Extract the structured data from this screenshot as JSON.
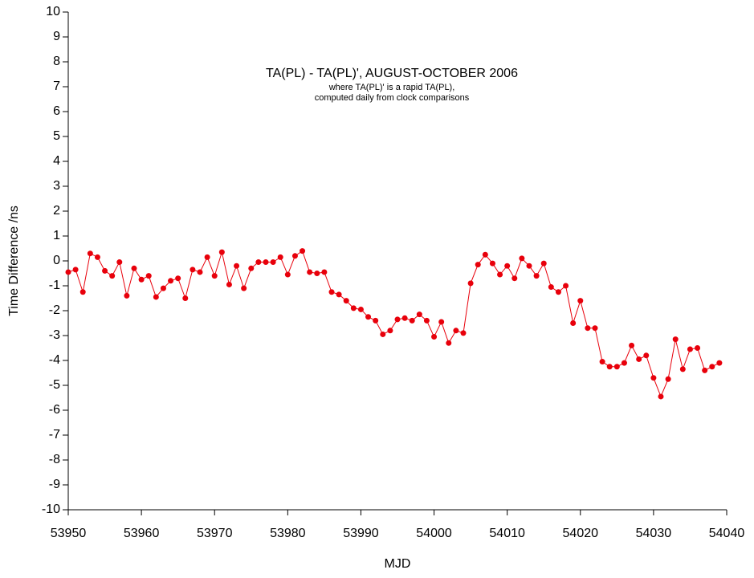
{
  "chart_data": {
    "type": "line",
    "title": "TA(PL) - TA(PL)', AUGUST-OCTOBER 2006",
    "subtitle": [
      "where TA(PL)' is a rapid TA(PL),",
      "computed daily from clock comparisons"
    ],
    "x_label": "MJD",
    "y_label": "Time Difference /ns",
    "xlim": [
      53950,
      54040
    ],
    "xticks": [
      53950,
      53960,
      53970,
      53980,
      53990,
      54000,
      54010,
      54020,
      54030,
      54040
    ],
    "ylim": [
      -10,
      10
    ],
    "yticks": [
      -10,
      -9,
      -8,
      -7,
      -6,
      -5,
      -4,
      -3,
      -2,
      -1,
      0,
      1,
      2,
      3,
      4,
      5,
      6,
      7,
      8,
      9,
      10
    ],
    "grid": false,
    "x": [
      53950,
      53951,
      53952,
      53953,
      53954,
      53955,
      53956,
      53957,
      53958,
      53959,
      53960,
      53961,
      53962,
      53963,
      53964,
      53965,
      53966,
      53967,
      53968,
      53969,
      53970,
      53971,
      53972,
      53973,
      53974,
      53975,
      53976,
      53977,
      53978,
      53979,
      53980,
      53981,
      53982,
      53983,
      53984,
      53985,
      53986,
      53987,
      53988,
      53989,
      53990,
      53991,
      53992,
      53993,
      53994,
      53995,
      53996,
      53997,
      53998,
      53999,
      54000,
      54001,
      54002,
      54003,
      54004,
      54005,
      54006,
      54007,
      54008,
      54009,
      54010,
      54011,
      54012,
      54013,
      54014,
      54015,
      54016,
      54017,
      54018,
      54019,
      54020,
      54021,
      54022,
      54023,
      54024,
      54025,
      54026,
      54027,
      54028,
      54029,
      54030,
      54031,
      54032,
      54033,
      54034,
      54035,
      54036,
      54037,
      54038,
      54039
    ],
    "series": [
      {
        "color": "#e8000b",
        "values": [
          -0.45,
          -0.35,
          -1.25,
          0.3,
          0.15,
          -0.4,
          -0.6,
          -0.05,
          -1.4,
          -0.3,
          -0.75,
          -0.6,
          -1.45,
          -1.1,
          -0.8,
          -0.7,
          -1.5,
          -0.35,
          -0.45,
          0.15,
          -0.6,
          0.35,
          -0.95,
          -0.2,
          -1.1,
          -0.3,
          -0.05,
          -0.05,
          -0.05,
          0.15,
          -0.55,
          0.2,
          0.4,
          -0.45,
          -0.5,
          -0.45,
          -1.25,
          -1.35,
          -1.6,
          -1.9,
          -1.95,
          -2.25,
          -2.4,
          -2.95,
          -2.8,
          -2.35,
          -2.3,
          -2.4,
          -2.15,
          -2.4,
          -3.05,
          -2.45,
          -3.3,
          -2.8,
          -2.9,
          -0.9,
          -0.15,
          0.25,
          -0.1,
          -0.55,
          -0.2,
          -0.7,
          0.1,
          -0.2,
          -0.6,
          -0.1,
          -1.05,
          -1.25,
          -1.0,
          -2.5,
          -1.6,
          -2.7,
          -2.7,
          -4.05,
          -4.25,
          -4.25,
          -4.1,
          -3.4,
          -3.95,
          -3.8,
          -4.7,
          -5.45,
          -4.75,
          -3.15,
          -4.35,
          -3.55,
          -3.5,
          -4.4,
          -4.25,
          -4.1
        ]
      }
    ]
  }
}
